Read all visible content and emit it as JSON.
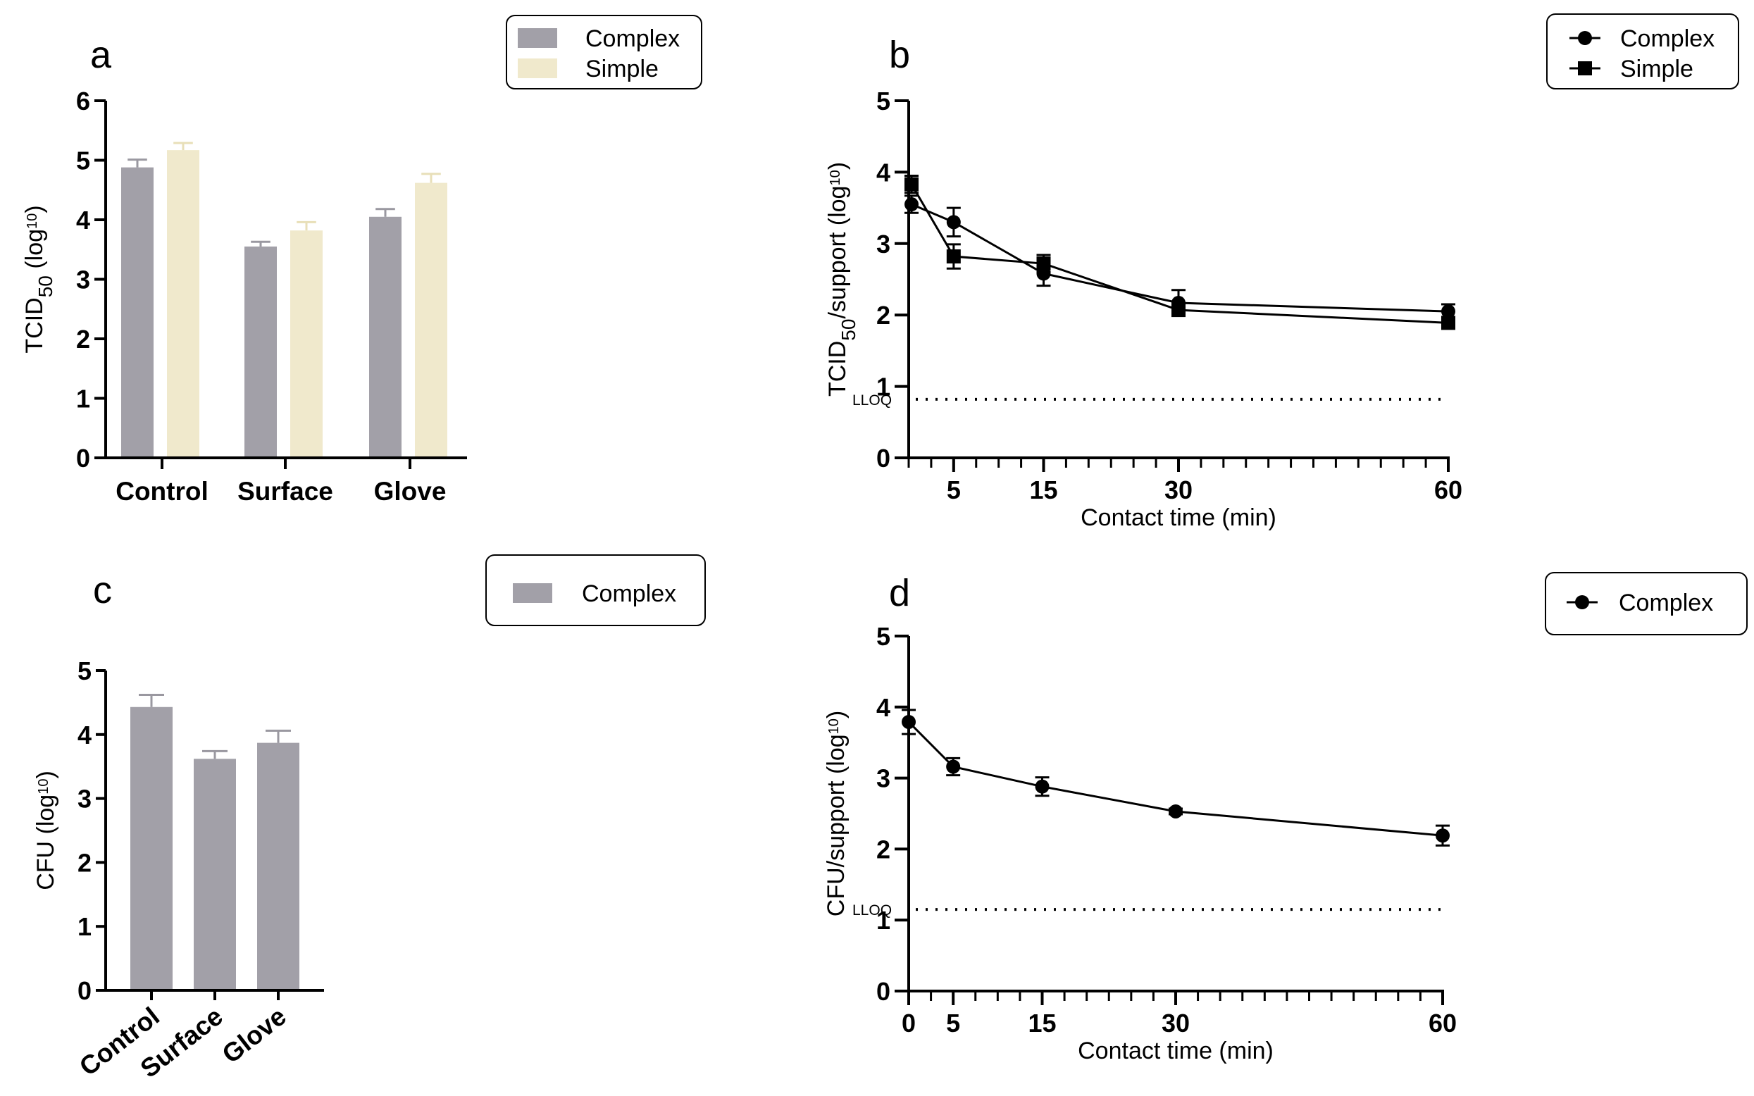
{
  "colors": {
    "complex": "#a2a0a8",
    "simple": "#f0e9cc",
    "line": "#000000",
    "errbar_complex": "#9a98a0",
    "errbar_simple": "#e8dfb8"
  },
  "chart_data": [
    {
      "panel": "a",
      "type": "bar",
      "categories": [
        "Control",
        "Surface",
        "Glove"
      ],
      "series": [
        {
          "name": "Complex",
          "values": [
            4.88,
            3.55,
            4.05
          ],
          "errors": [
            0.13,
            0.08,
            0.13
          ]
        },
        {
          "name": "Simple",
          "values": [
            5.17,
            3.82,
            4.62
          ],
          "errors": [
            0.12,
            0.14,
            0.15
          ]
        }
      ],
      "ylabel": "TCID50 (log10)",
      "ylabel_parts": {
        "main": "TCID",
        "sub": "50",
        "rest": " (log",
        "exp": "10",
        "end": ")"
      },
      "ylim": [
        0,
        6
      ],
      "yticks": [
        "0",
        "1",
        "2",
        "3",
        "4",
        "5",
        "6"
      ],
      "legend": {
        "position": "top-right",
        "entries": [
          "Complex",
          "Simple"
        ]
      }
    },
    {
      "panel": "b",
      "type": "line",
      "xlabel": "Contact time (min)",
      "ylabel": "TCID50/support (log10)",
      "ylabel_parts": {
        "main": "TCID",
        "sub": "50",
        "rest": "/support (log",
        "exp": "10",
        "end": ")"
      },
      "xlim": [
        0,
        60
      ],
      "ylim": [
        0,
        5
      ],
      "xticks": [
        "5",
        "15",
        "30",
        "60"
      ],
      "xtick_values": [
        5,
        15,
        30,
        60
      ],
      "yticks": [
        "0",
        "1",
        "2",
        "3",
        "4",
        "5"
      ],
      "lloq": {
        "label": "LLOQ",
        "value": 0.82
      },
      "series": [
        {
          "name": "Complex",
          "marker": "circle",
          "x": [
            0,
            5,
            15,
            30,
            60
          ],
          "y": [
            3.55,
            3.3,
            2.58,
            2.17,
            2.05
          ],
          "err": [
            0.12,
            0.2,
            0.17,
            0.18,
            0.1
          ]
        },
        {
          "name": "Simple",
          "marker": "square",
          "x": [
            0,
            5,
            15,
            30,
            60
          ],
          "y": [
            3.83,
            2.82,
            2.72,
            2.07,
            1.89
          ],
          "err": [
            0.12,
            0.17,
            0.12,
            0.06,
            0.08
          ]
        }
      ],
      "legend": {
        "position": "top-right",
        "entries": [
          "Complex",
          "Simple"
        ]
      }
    },
    {
      "panel": "c",
      "type": "bar",
      "categories": [
        "Control",
        "Surface",
        "Glove"
      ],
      "series": [
        {
          "name": "Complex",
          "values": [
            4.43,
            3.62,
            3.87
          ],
          "errors": [
            0.19,
            0.12,
            0.19
          ]
        }
      ],
      "ylabel": "CFU (log10)",
      "ylabel_parts": {
        "main": "CFU (log",
        "exp": "10",
        "end": ")"
      },
      "ylim": [
        0,
        5
      ],
      "yticks": [
        "0",
        "1",
        "2",
        "3",
        "4",
        "5"
      ],
      "legend": {
        "position": "top-right",
        "entries": [
          "Complex"
        ]
      }
    },
    {
      "panel": "d",
      "type": "line",
      "xlabel": "Contact time (min)",
      "ylabel": "CFU/support (log10)",
      "ylabel_parts": {
        "main": "CFU/support (log",
        "exp": "10",
        "end": ")"
      },
      "xlim": [
        0,
        60
      ],
      "ylim": [
        0,
        5
      ],
      "xticks": [
        "0",
        "5",
        "15",
        "30",
        "60"
      ],
      "xtick_values": [
        0,
        5,
        15,
        30,
        60
      ],
      "yticks": [
        "0",
        "1",
        "2",
        "3",
        "4",
        "5"
      ],
      "lloq": {
        "label": "LLOQ",
        "value": 1.15
      },
      "series": [
        {
          "name": "Complex",
          "marker": "circle",
          "x": [
            0,
            5,
            15,
            30,
            60
          ],
          "y": [
            3.79,
            3.16,
            2.88,
            2.53,
            2.19
          ],
          "err": [
            0.17,
            0.12,
            0.13,
            0.04,
            0.14
          ]
        }
      ],
      "legend": {
        "position": "top-right",
        "entries": [
          "Complex"
        ]
      }
    }
  ]
}
